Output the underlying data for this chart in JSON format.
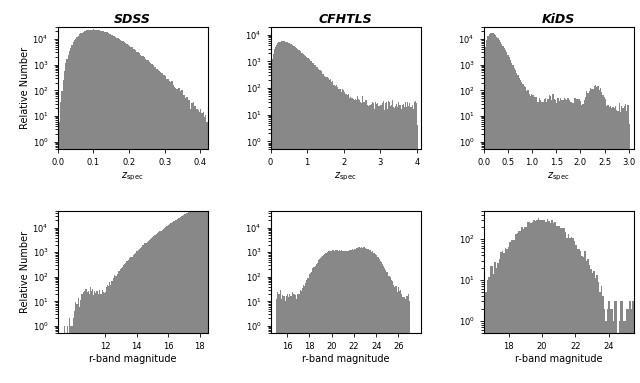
{
  "titles": [
    "SDSS",
    "CFHTLS",
    "KiDS"
  ],
  "bar_color": "#888888",
  "sdss_z": {
    "xmin": 0.0,
    "xmax": 0.42,
    "ylim": [
      0.5,
      30000.0
    ],
    "xticks": [
      0.0,
      0.1,
      0.2,
      0.3,
      0.4
    ],
    "nbins": 120
  },
  "cfhtls_z": {
    "xmin": 0.0,
    "xmax": 4.1,
    "ylim": [
      0.5,
      20000.0
    ],
    "xticks": [
      0,
      1,
      2,
      3,
      4
    ],
    "nbins": 200
  },
  "kids_z": {
    "xmin": 0.0,
    "xmax": 3.1,
    "ylim": [
      0.5,
      30000.0
    ],
    "xticks": [
      0.0,
      0.5,
      1.0,
      1.5,
      2.0,
      2.5,
      3.0
    ],
    "nbins": 120
  },
  "sdss_mag": {
    "xmin": 9.0,
    "xmax": 18.5,
    "ylim": [
      0.5,
      50000.0
    ],
    "xticks": [
      12,
      14,
      16,
      18
    ],
    "nbins": 140
  },
  "cfhtls_mag": {
    "xmin": 14.5,
    "xmax": 28.0,
    "ylim": [
      0.5,
      50000.0
    ],
    "xticks": [
      16,
      18,
      20,
      22,
      24,
      26
    ],
    "nbins": 140
  },
  "kids_mag": {
    "xmin": 16.5,
    "xmax": 25.5,
    "ylim": [
      0.5,
      500.0
    ],
    "xticks": [
      18,
      20,
      22,
      24
    ],
    "nbins": 100
  }
}
